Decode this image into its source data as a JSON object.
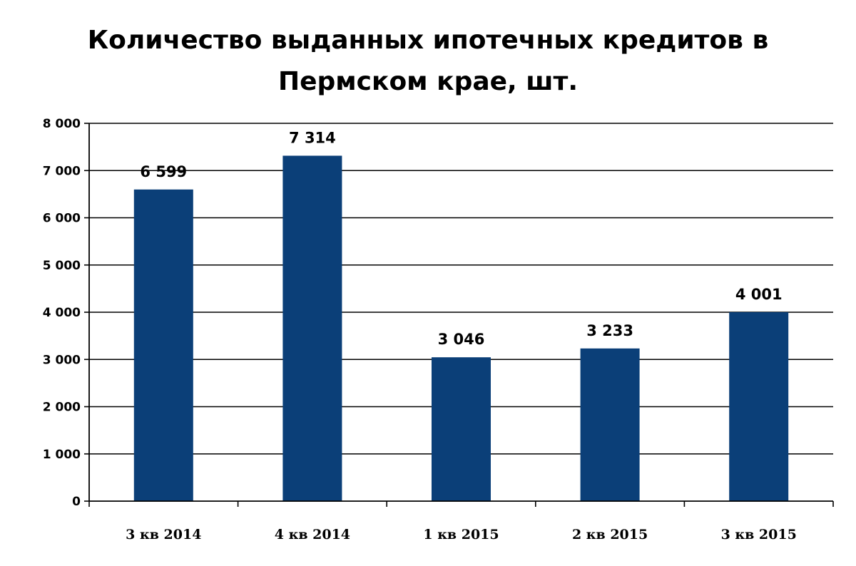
{
  "chart_data": {
    "type": "bar",
    "title": "Количество выданных  ипотечных кредитов в\nПермском крае, шт.",
    "categories": [
      "3 кв 2014",
      "4 кв 2014",
      "1 кв 2015",
      "2 кв 2015",
      "3 кв 2015"
    ],
    "values": [
      6599,
      7314,
      3046,
      3233,
      4001
    ],
    "value_labels": [
      "6 599",
      "7 314",
      "3 046",
      "3 233",
      "4 001"
    ],
    "y_ticks": [
      "0",
      "1 000",
      "2 000",
      "3 000",
      "4 000",
      "5 000",
      "6 000",
      "7 000",
      "8 000"
    ],
    "ylim": [
      0,
      8000
    ],
    "xlabel": "",
    "ylabel": "",
    "grid": true,
    "legend": "none",
    "bar_color": "#0b3f78",
    "grid_color": "#000000"
  }
}
